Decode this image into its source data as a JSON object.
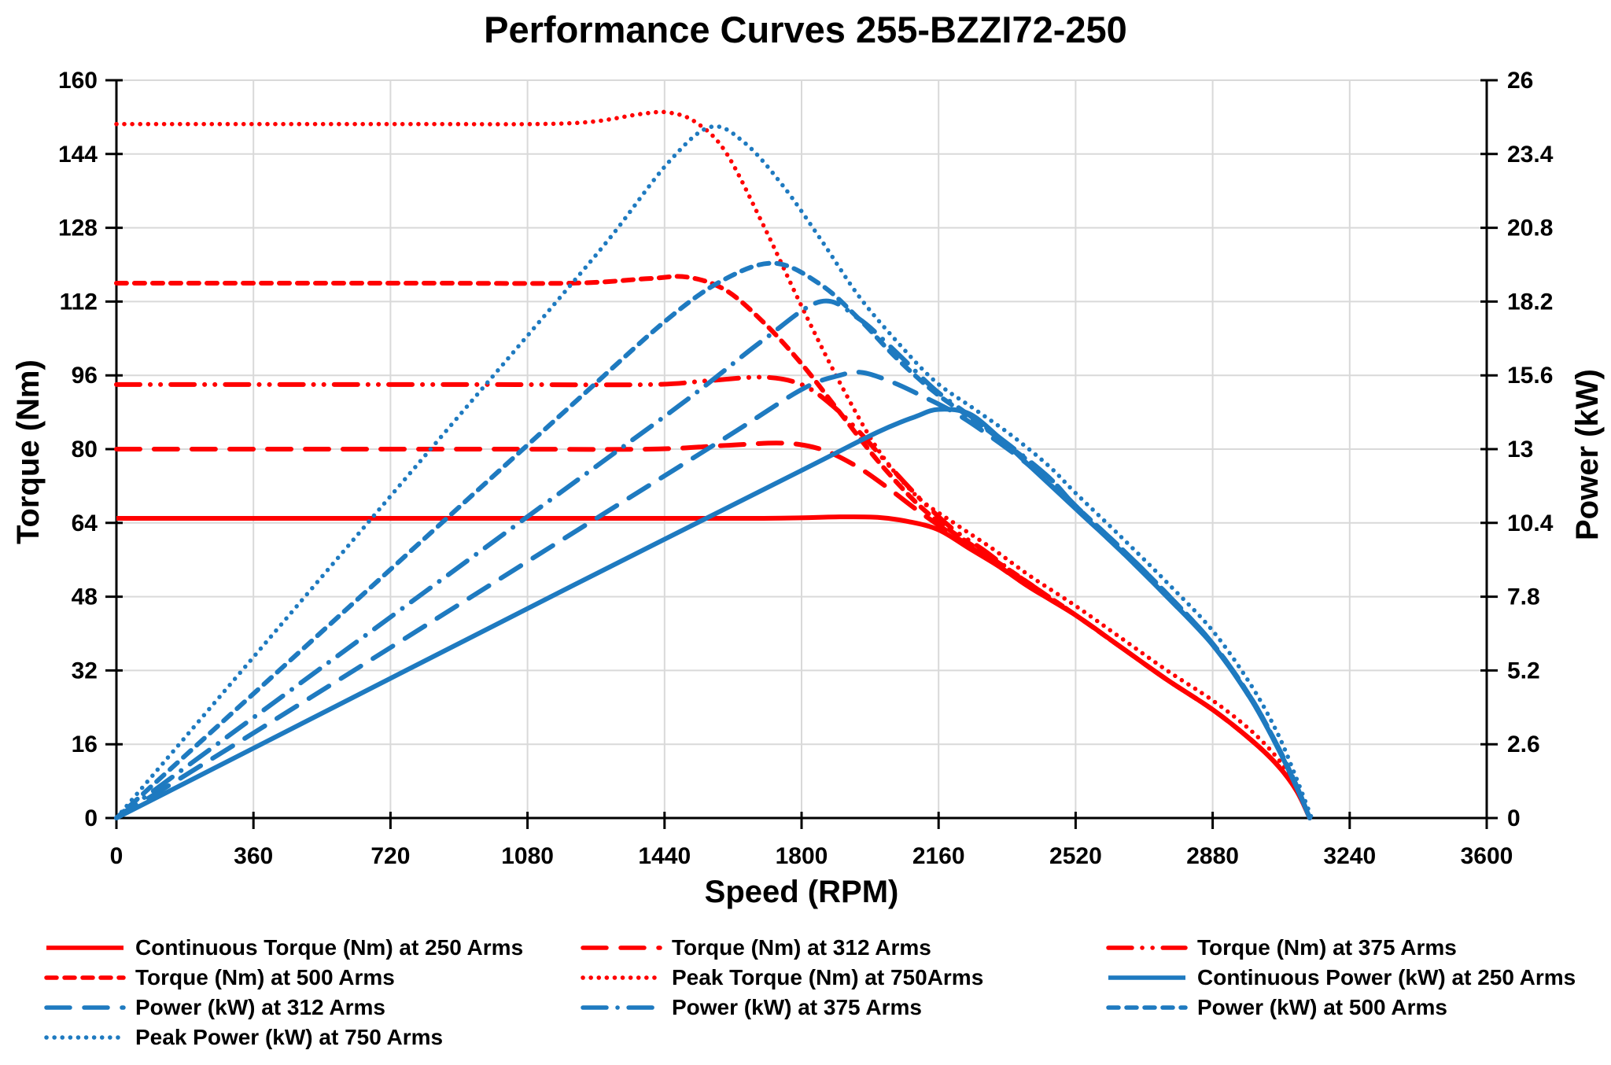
{
  "title": "Performance Curves 255-BZZI72-250",
  "colors": {
    "red": "#FF0000",
    "blue": "#1E7AC0",
    "grid": "#D9D9D9",
    "axis": "#000000",
    "text": "#000000"
  },
  "chart_data": {
    "type": "line",
    "title": "Performance Curves 255-BZZI72-250",
    "xlabel": "Speed (RPM)",
    "ylabel_left": "Torque (Nm)",
    "ylabel_right": "Power (kW)",
    "xlim": [
      0,
      3600
    ],
    "ylim_left": [
      0,
      160
    ],
    "ylim_right": [
      0,
      26
    ],
    "x_ticks": [
      0,
      360,
      720,
      1080,
      1440,
      1800,
      2160,
      2520,
      2880,
      3240,
      3600
    ],
    "y_left_ticks": [
      0,
      16,
      32,
      48,
      64,
      80,
      96,
      112,
      128,
      144,
      160
    ],
    "y_right_ticks": [
      0,
      2.6,
      5.2,
      7.8,
      10.4,
      13,
      15.6,
      18.2,
      20.8,
      23.4,
      26
    ],
    "grid": true,
    "legend_position": "bottom",
    "series": [
      {
        "id": "continuous-torque-250",
        "label": "Continuous Torque (Nm) at 250 Arms",
        "axis": "left",
        "color": "#FF0000",
        "dash": "solid",
        "points": [
          [
            0,
            65
          ],
          [
            600,
            65
          ],
          [
            1200,
            65
          ],
          [
            1700,
            65
          ],
          [
            1900,
            65.3
          ],
          [
            2000,
            65.2
          ],
          [
            2080,
            64.3
          ],
          [
            2160,
            62.5
          ],
          [
            2240,
            58.5
          ],
          [
            2320,
            54.5
          ],
          [
            2400,
            50
          ],
          [
            2520,
            44
          ],
          [
            2640,
            37
          ],
          [
            2760,
            30
          ],
          [
            2880,
            23.5
          ],
          [
            2980,
            17
          ],
          [
            3050,
            11.5
          ],
          [
            3100,
            6
          ],
          [
            3135,
            0
          ]
        ]
      },
      {
        "id": "torque-312",
        "label": "Torque (Nm) at 312 Arms",
        "axis": "left",
        "color": "#FF0000",
        "dash": "long-dash",
        "points": [
          [
            0,
            80
          ],
          [
            500,
            80
          ],
          [
            1000,
            80
          ],
          [
            1400,
            80
          ],
          [
            1600,
            80.8
          ],
          [
            1750,
            81.3
          ],
          [
            1850,
            80
          ],
          [
            1940,
            76.5
          ],
          [
            2020,
            72
          ],
          [
            2100,
            67
          ],
          [
            2160,
            63.5
          ],
          [
            2240,
            59
          ],
          [
            2320,
            54.5
          ],
          [
            2400,
            50
          ],
          [
            2520,
            44
          ],
          [
            2640,
            37
          ],
          [
            2760,
            30
          ],
          [
            2880,
            23.5
          ],
          [
            2980,
            17
          ],
          [
            3050,
            11.5
          ],
          [
            3100,
            6
          ],
          [
            3135,
            0
          ]
        ]
      },
      {
        "id": "torque-375",
        "label": "Torque (Nm) at 375 Arms",
        "axis": "left",
        "color": "#FF0000",
        "dash": "dash-dot-dot",
        "points": [
          [
            0,
            94
          ],
          [
            500,
            94
          ],
          [
            1000,
            94
          ],
          [
            1400,
            94
          ],
          [
            1550,
            94.8
          ],
          [
            1700,
            95.6
          ],
          [
            1800,
            94
          ],
          [
            1880,
            89.5
          ],
          [
            1960,
            83
          ],
          [
            2040,
            75.5
          ],
          [
            2120,
            68.5
          ],
          [
            2200,
            62.5
          ],
          [
            2280,
            58
          ],
          [
            2360,
            53
          ],
          [
            2440,
            48.5
          ],
          [
            2520,
            44
          ],
          [
            2640,
            37
          ],
          [
            2760,
            30
          ],
          [
            2880,
            23.5
          ],
          [
            2980,
            17
          ],
          [
            3050,
            11.5
          ],
          [
            3100,
            6
          ],
          [
            3135,
            0
          ]
        ]
      },
      {
        "id": "torque-500",
        "label": "Torque (Nm) at 500 Arms",
        "axis": "left",
        "color": "#FF0000",
        "dash": "short-dash",
        "points": [
          [
            0,
            116
          ],
          [
            400,
            116
          ],
          [
            800,
            116
          ],
          [
            1200,
            116
          ],
          [
            1400,
            117
          ],
          [
            1500,
            117.3
          ],
          [
            1600,
            114.5
          ],
          [
            1700,
            107.5
          ],
          [
            1800,
            98.5
          ],
          [
            1900,
            88
          ],
          [
            2000,
            77.5
          ],
          [
            2100,
            68.5
          ],
          [
            2180,
            63
          ],
          [
            2260,
            58.5
          ],
          [
            2360,
            53
          ],
          [
            2440,
            48.5
          ],
          [
            2520,
            44
          ],
          [
            2640,
            37
          ],
          [
            2760,
            30
          ],
          [
            2880,
            23.5
          ],
          [
            2980,
            17
          ],
          [
            3050,
            11.5
          ],
          [
            3100,
            6
          ],
          [
            3135,
            0
          ]
        ]
      },
      {
        "id": "peak-torque-750",
        "label": "Peak Torque (Nm) at 750Arms",
        "axis": "left",
        "color": "#FF0000",
        "dash": "dot",
        "points": [
          [
            0,
            150.5
          ],
          [
            400,
            150.5
          ],
          [
            800,
            150.5
          ],
          [
            1100,
            150.5
          ],
          [
            1250,
            151
          ],
          [
            1380,
            152.7
          ],
          [
            1450,
            153
          ],
          [
            1520,
            151
          ],
          [
            1600,
            144.5
          ],
          [
            1700,
            128.5
          ],
          [
            1800,
            111
          ],
          [
            1900,
            94.5
          ],
          [
            2000,
            80
          ],
          [
            2100,
            70
          ],
          [
            2200,
            64
          ],
          [
            2300,
            58.5
          ],
          [
            2400,
            52.5
          ],
          [
            2520,
            46
          ],
          [
            2640,
            39
          ],
          [
            2760,
            32
          ],
          [
            2880,
            25.5
          ],
          [
            2980,
            19
          ],
          [
            3050,
            13
          ],
          [
            3100,
            7
          ],
          [
            3135,
            0
          ]
        ]
      },
      {
        "id": "continuous-power-250",
        "label": "Continuous Power (kW) at 250 Arms",
        "axis": "right",
        "color": "#1E7AC0",
        "dash": "solid",
        "points": [
          [
            0,
            0
          ],
          [
            600,
            4.1
          ],
          [
            1200,
            8.2
          ],
          [
            1800,
            12.25
          ],
          [
            2000,
            13.6
          ],
          [
            2100,
            14.15
          ],
          [
            2160,
            14.4
          ],
          [
            2240,
            14.25
          ],
          [
            2320,
            13.4
          ],
          [
            2400,
            12.4
          ],
          [
            2520,
            10.9
          ],
          [
            2640,
            9.4
          ],
          [
            2760,
            7.8
          ],
          [
            2880,
            6.1
          ],
          [
            2980,
            4.2
          ],
          [
            3050,
            2.5
          ],
          [
            3100,
            1.1
          ],
          [
            3135,
            0
          ]
        ]
      },
      {
        "id": "power-312",
        "label": "Power (kW) at 312 Arms",
        "axis": "right",
        "color": "#1E7AC0",
        "dash": "long-dash",
        "points": [
          [
            0,
            0
          ],
          [
            600,
            5.0
          ],
          [
            1200,
            10.05
          ],
          [
            1600,
            13.4
          ],
          [
            1800,
            15.1
          ],
          [
            1900,
            15.6
          ],
          [
            1960,
            15.7
          ],
          [
            2040,
            15.35
          ],
          [
            2120,
            14.85
          ],
          [
            2200,
            14.3
          ],
          [
            2280,
            13.6
          ],
          [
            2400,
            12.4
          ],
          [
            2520,
            10.9
          ],
          [
            2640,
            9.4
          ],
          [
            2760,
            7.8
          ],
          [
            2880,
            6.1
          ],
          [
            2980,
            4.2
          ],
          [
            3050,
            2.5
          ],
          [
            3100,
            1.1
          ],
          [
            3135,
            0
          ]
        ]
      },
      {
        "id": "power-375",
        "label": "Power (kW) at 375 Arms",
        "axis": "right",
        "color": "#1E7AC0",
        "dash": "dash-dot",
        "points": [
          [
            0,
            0
          ],
          [
            600,
            5.9
          ],
          [
            1200,
            11.8
          ],
          [
            1500,
            14.75
          ],
          [
            1700,
            16.85
          ],
          [
            1850,
            18.2
          ],
          [
            1950,
            17.6
          ],
          [
            2050,
            16.4
          ],
          [
            2150,
            15.1
          ],
          [
            2250,
            14.1
          ],
          [
            2350,
            13.1
          ],
          [
            2450,
            12.0
          ],
          [
            2520,
            11.0
          ],
          [
            2640,
            9.5
          ],
          [
            2760,
            7.9
          ],
          [
            2880,
            6.15
          ],
          [
            2980,
            4.25
          ],
          [
            3050,
            2.55
          ],
          [
            3100,
            1.15
          ],
          [
            3135,
            0
          ]
        ]
      },
      {
        "id": "power-500",
        "label": "Power (kW) at 500 Arms",
        "axis": "right",
        "color": "#1E7AC0",
        "dash": "short-dash",
        "points": [
          [
            0,
            0
          ],
          [
            600,
            7.3
          ],
          [
            1200,
            14.6
          ],
          [
            1450,
            17.6
          ],
          [
            1600,
            19.0
          ],
          [
            1730,
            19.55
          ],
          [
            1850,
            18.8
          ],
          [
            1950,
            17.6
          ],
          [
            2050,
            16.2
          ],
          [
            2150,
            15.0
          ],
          [
            2250,
            14.05
          ],
          [
            2350,
            13.05
          ],
          [
            2450,
            12.0
          ],
          [
            2520,
            11.0
          ],
          [
            2640,
            9.5
          ],
          [
            2760,
            7.9
          ],
          [
            2880,
            6.15
          ],
          [
            2980,
            4.25
          ],
          [
            3050,
            2.55
          ],
          [
            3100,
            1.15
          ],
          [
            3135,
            0
          ]
        ]
      },
      {
        "id": "peak-power-750",
        "label": "Peak Power (kW) at 750 Arms",
        "axis": "right",
        "color": "#1E7AC0",
        "dash": "dot",
        "points": [
          [
            0,
            0
          ],
          [
            400,
            6.3
          ],
          [
            800,
            12.6
          ],
          [
            1150,
            18.1
          ],
          [
            1300,
            20.5
          ],
          [
            1450,
            23.1
          ],
          [
            1560,
            24.35
          ],
          [
            1650,
            23.8
          ],
          [
            1750,
            22.3
          ],
          [
            1850,
            20.4
          ],
          [
            1950,
            18.4
          ],
          [
            2050,
            16.8
          ],
          [
            2150,
            15.4
          ],
          [
            2250,
            14.45
          ],
          [
            2350,
            13.5
          ],
          [
            2450,
            12.4
          ],
          [
            2520,
            11.45
          ],
          [
            2640,
            9.9
          ],
          [
            2760,
            8.3
          ],
          [
            2880,
            6.6
          ],
          [
            2980,
            4.7
          ],
          [
            3050,
            3.0
          ],
          [
            3100,
            1.4
          ],
          [
            3140,
            0
          ]
        ]
      }
    ]
  }
}
